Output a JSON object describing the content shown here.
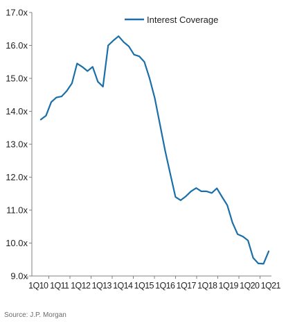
{
  "chart_data": {
    "type": "line",
    "title": "",
    "xlabel": "",
    "ylabel": "",
    "ylim": [
      9.0,
      17.0
    ],
    "y_ticks": [
      "9.0x",
      "10.0x",
      "11.0x",
      "12.0x",
      "13.0x",
      "14.0x",
      "15.0x",
      "16.0x",
      "17.0x"
    ],
    "y_tick_values": [
      9,
      10,
      11,
      12,
      13,
      14,
      15,
      16,
      17
    ],
    "x_ticks": [
      "1Q10",
      "1Q11",
      "1Q12",
      "1Q13",
      "1Q14",
      "1Q15",
      "1Q16",
      "1Q17",
      "1Q18",
      "1Q19",
      "1Q20",
      "1Q21"
    ],
    "grid": false,
    "legend_position": "top-center",
    "series": [
      {
        "name": "Interest Coverage",
        "color": "#1a6fa8",
        "x": [
          "1Q10",
          "2Q10",
          "3Q10",
          "4Q10",
          "1Q11",
          "2Q11",
          "3Q11",
          "4Q11",
          "1Q12",
          "2Q12",
          "3Q12",
          "4Q12",
          "1Q13",
          "2Q13",
          "3Q13",
          "4Q13",
          "1Q14",
          "2Q14",
          "3Q14",
          "4Q14",
          "1Q15",
          "2Q15",
          "3Q15",
          "4Q15",
          "1Q16",
          "2Q16",
          "3Q16",
          "4Q16",
          "1Q17",
          "2Q17",
          "3Q17",
          "4Q17",
          "1Q18",
          "2Q18",
          "3Q18",
          "4Q18",
          "1Q19",
          "2Q19",
          "3Q19",
          "4Q19",
          "1Q20",
          "2Q20",
          "3Q20",
          "4Q20",
          "1Q21"
        ],
        "values": [
          13.75,
          13.87,
          14.28,
          14.42,
          14.45,
          14.62,
          14.85,
          15.45,
          15.35,
          15.22,
          15.35,
          14.9,
          14.75,
          16.0,
          16.15,
          16.28,
          16.1,
          15.97,
          15.72,
          15.67,
          15.5,
          15.0,
          14.4,
          13.6,
          12.8,
          12.1,
          11.4,
          11.3,
          11.42,
          11.57,
          11.67,
          11.57,
          11.57,
          11.52,
          11.66,
          11.4,
          11.15,
          10.62,
          10.27,
          10.2,
          10.08,
          9.55,
          9.38,
          9.37,
          9.75
        ]
      }
    ]
  },
  "source_note": "Source:  J.P. Morgan"
}
